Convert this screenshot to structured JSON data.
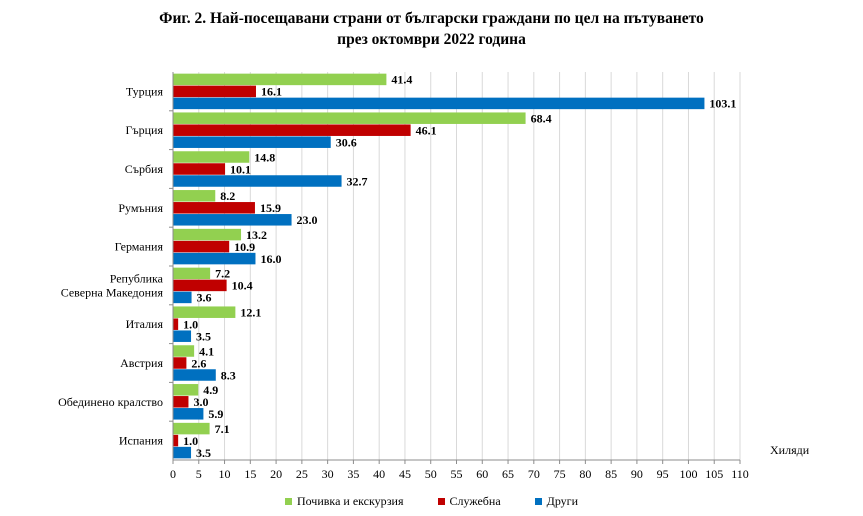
{
  "chart_data": {
    "type": "bar",
    "orientation": "horizontal",
    "title": "Фиг. 2. Най-посещавани страни от български граждани по цел на пътуването",
    "subtitle": "през октомври 2022 година",
    "xlabel": "Хиляди",
    "ylabel": "",
    "xlim": [
      0,
      110
    ],
    "xticks": [
      "0",
      "5",
      "10",
      "15",
      "20",
      "25",
      "30",
      "35",
      "40",
      "45",
      "50",
      "55",
      "60",
      "65",
      "70",
      "75",
      "80",
      "85",
      "90",
      "95",
      "100",
      "105",
      "110"
    ],
    "grid": true,
    "legend_position": "bottom",
    "categories": [
      [
        "Турция"
      ],
      [
        "Гърция"
      ],
      [
        "Сърбия"
      ],
      [
        "Румъния"
      ],
      [
        "Германия"
      ],
      [
        "Република",
        "Северна Македония"
      ],
      [
        "Италия"
      ],
      [
        "Австрия"
      ],
      [
        "Обединено кралство"
      ],
      [
        "Испания"
      ]
    ],
    "series": [
      {
        "name": "Почивка и екскурзия",
        "color": "#92d050",
        "values": [
          41.4,
          68.4,
          14.8,
          8.2,
          13.2,
          7.2,
          12.1,
          4.1,
          4.9,
          7.1
        ],
        "labels": [
          "41.4",
          "68.4",
          "14.8",
          "8.2",
          "13.2",
          "7.2",
          "12.1",
          "4.1",
          "4.9",
          "7.1"
        ]
      },
      {
        "name": "Служебна",
        "color": "#c00000",
        "values": [
          16.1,
          46.1,
          10.1,
          15.9,
          10.9,
          10.4,
          1.0,
          2.6,
          3.0,
          1.0
        ],
        "labels": [
          "16.1",
          "46.1",
          "10.1",
          "15.9",
          "10.9",
          "10.4",
          "1.0",
          "2.6",
          "3.0",
          "1.0"
        ]
      },
      {
        "name": "Други",
        "color": "#0070c0",
        "values": [
          103.1,
          30.6,
          32.7,
          23.0,
          16.0,
          3.6,
          3.5,
          8.3,
          5.9,
          3.5
        ],
        "labels": [
          "103.1",
          "30.6",
          "32.7",
          "23.0",
          "16.0",
          "3.6",
          "3.5",
          "8.3",
          "5.9",
          "3.5"
        ]
      }
    ]
  }
}
